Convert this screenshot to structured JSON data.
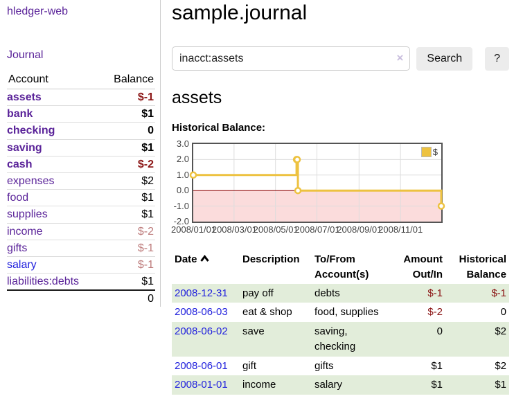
{
  "app": {
    "title": "hledger-web"
  },
  "sidebar": {
    "journal_link": "Journal",
    "accounts_table": {
      "headers": {
        "account": "Account",
        "balance": "Balance"
      },
      "rows": [
        {
          "account": "assets",
          "balance": "$-1"
        },
        {
          "account": "bank",
          "balance": "$1"
        },
        {
          "account": "checking",
          "balance": "0"
        },
        {
          "account": "saving",
          "balance": "$1"
        },
        {
          "account": "cash",
          "balance": "$-2"
        },
        {
          "account": "expenses",
          "balance": "$2"
        },
        {
          "account": "food",
          "balance": "$1"
        },
        {
          "account": "supplies",
          "balance": "$1"
        },
        {
          "account": "income",
          "balance": "$-2"
        },
        {
          "account": "gifts",
          "balance": "$-1"
        },
        {
          "account": "salary",
          "balance": "$-1"
        },
        {
          "account": "liabilities:debts",
          "balance": "$1"
        }
      ],
      "total": "0"
    }
  },
  "main": {
    "title": "sample.journal",
    "search": {
      "value": "inacct:assets",
      "clear_icon": "×",
      "button_label": "Search",
      "help_label": "?"
    },
    "account_heading": "assets",
    "chart_heading": "Historical Balance:",
    "register": {
      "headers": {
        "date": "Date",
        "description": "Description",
        "accounts": "To/From Account(s)",
        "amount": "Amount Out/In",
        "balance": "Historical Balance"
      },
      "rows": [
        {
          "date": "2008-12-31",
          "description": "pay off",
          "accounts": "debts",
          "amount": "$-1",
          "balance": "$-1"
        },
        {
          "date": "2008-06-03",
          "description": "eat & shop",
          "accounts": "food, supplies",
          "amount": "$-2",
          "balance": "0"
        },
        {
          "date": "2008-06-02",
          "description": "save",
          "accounts": "saving, checking",
          "amount": "0",
          "balance": "$2"
        },
        {
          "date": "2008-06-01",
          "description": "gift",
          "accounts": "gifts",
          "amount": "$1",
          "balance": "$2"
        },
        {
          "date": "2008-01-01",
          "description": "income",
          "accounts": "salary",
          "amount": "$1",
          "balance": "$1"
        }
      ]
    }
  },
  "chart_data": {
    "type": "line",
    "step": true,
    "title": "Historical Balance:",
    "series": [
      {
        "name": "$",
        "color": "#edc240",
        "points": [
          [
            "2008-01-01",
            1
          ],
          [
            "2008-06-01",
            2
          ],
          [
            "2008-06-02",
            2
          ],
          [
            "2008-06-03",
            0
          ],
          [
            "2008-12-31",
            -1
          ]
        ]
      }
    ],
    "xlim": [
      "2008-01-01",
      "2008-12-31"
    ],
    "ylim": [
      -2,
      3
    ],
    "y_ticks": [
      3.0,
      2.0,
      1.0,
      0.0,
      -1.0,
      -2.0
    ],
    "x_ticks": [
      {
        "date": "2008-01-01",
        "label": "2008/01/01"
      },
      {
        "date": "2008-03-01",
        "label": "2008/03/01"
      },
      {
        "date": "2008-05-01",
        "label": "2008/05/01"
      },
      {
        "date": "2008-07-01",
        "label": "2008/07/01"
      },
      {
        "date": "2008-09-01",
        "label": "2008/09/01"
      },
      {
        "date": "2008-11-01",
        "label": "2008/11/01"
      }
    ],
    "grid": true,
    "legend_position": "top-right",
    "zero_line_color": "#8b0000",
    "negative_region_fill": "#fbdcdc",
    "gridline_color": "#dddddd"
  },
  "colors": {
    "visited_link_purple": "#5a2399",
    "link_blue": "#2222dd",
    "negative_red": "#8b1515",
    "negative_soft_red": "#bd7b7b",
    "row_green": "#e2edda",
    "chart_line_yellow": "#edc240"
  }
}
